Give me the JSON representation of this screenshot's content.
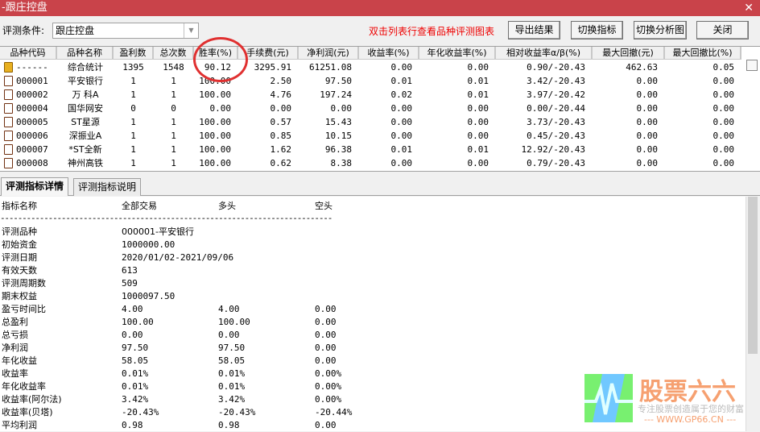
{
  "window": {
    "title": "-跟庄控盘",
    "close": "✕"
  },
  "toolbar": {
    "condition_label": "评测条件:",
    "condition_value": "跟庄控盘",
    "hint": "双击列表行查看品种评测图表",
    "buttons": [
      "导出结果",
      "切换指标",
      "切换分析图",
      "关闭"
    ]
  },
  "table": {
    "headers": [
      "品种代码",
      "品种名称",
      "盈利数",
      "总次数",
      "胜率(%)",
      "手续费(元)",
      "净利润(元)",
      "收益率(%)",
      "年化收益率(%)",
      "相对收益率α/β(%)",
      "最大回撤(元)",
      "最大回撤比(%)"
    ],
    "rows": [
      [
        "------",
        "综合统计",
        "1395",
        "1548",
        "90.12",
        "3295.91",
        "61251.08",
        "0.00",
        "0.00",
        "0.90/-20.43",
        "462.63",
        "0.05"
      ],
      [
        "000001",
        "平安银行",
        "1",
        "1",
        "100.00",
        "2.50",
        "97.50",
        "0.01",
        "0.01",
        "3.42/-20.43",
        "0.00",
        "0.00"
      ],
      [
        "000002",
        "万 科A",
        "1",
        "1",
        "100.00",
        "4.76",
        "197.24",
        "0.02",
        "0.01",
        "3.97/-20.42",
        "0.00",
        "0.00"
      ],
      [
        "000004",
        "国华网安",
        "0",
        "0",
        "0.00",
        "0.00",
        "0.00",
        "0.00",
        "0.00",
        "0.00/-20.44",
        "0.00",
        "0.00"
      ],
      [
        "000005",
        "ST星源",
        "1",
        "1",
        "100.00",
        "0.57",
        "15.43",
        "0.00",
        "0.00",
        "3.73/-20.43",
        "0.00",
        "0.00"
      ],
      [
        "000006",
        "深振业A",
        "1",
        "1",
        "100.00",
        "0.85",
        "10.15",
        "0.00",
        "0.00",
        "0.45/-20.43",
        "0.00",
        "0.00"
      ],
      [
        "000007",
        "*ST全新",
        "1",
        "1",
        "100.00",
        "1.62",
        "96.38",
        "0.01",
        "0.01",
        "12.92/-20.43",
        "0.00",
        "0.00"
      ],
      [
        "000008",
        "神州高铁",
        "1",
        "1",
        "100.00",
        "0.62",
        "8.38",
        "0.00",
        "0.00",
        "0.79/-20.43",
        "0.00",
        "0.00"
      ]
    ]
  },
  "tabs": [
    {
      "label": "评测指标详情",
      "active": true
    },
    {
      "label": "评测指标说明",
      "active": false
    }
  ],
  "detail": {
    "headers": [
      "指标名称",
      "全部交易",
      "多头",
      "空头"
    ],
    "separator": "----------------------------------------------------------------------------",
    "rows": [
      [
        "评测品种",
        "000001-平安银行",
        "",
        ""
      ],
      [
        "初始资金",
        "1000000.00",
        "",
        ""
      ],
      [
        "评测日期",
        "2020/01/02-2021/09/06",
        "",
        ""
      ],
      [
        "有效天数",
        "613",
        "",
        ""
      ],
      [
        "评测周期数",
        "509",
        "",
        ""
      ],
      [
        "期末权益",
        "1000097.50",
        "",
        ""
      ],
      [
        "盈亏时间比",
        "4.00",
        "4.00",
        "0.00"
      ],
      [
        "总盈利",
        "100.00",
        "100.00",
        "0.00"
      ],
      [
        "总亏损",
        "0.00",
        "0.00",
        "0.00"
      ],
      [
        "净利润",
        "97.50",
        "97.50",
        "0.00"
      ],
      [
        "年化收益",
        "58.05",
        "58.05",
        "0.00"
      ],
      [
        "收益率",
        "0.01%",
        "0.01%",
        "0.00%"
      ],
      [
        "年化收益率",
        "0.01%",
        "0.01%",
        "0.00%"
      ],
      [
        "收益率(阿尔法)",
        "3.42%",
        "3.42%",
        "0.00%"
      ],
      [
        "收益率(贝塔)",
        "-20.43%",
        "-20.43%",
        "-20.44%"
      ],
      [
        "平均利润",
        "0.98",
        "0.98",
        "0.00"
      ]
    ]
  },
  "watermark": {
    "brand": "股票六六",
    "slogan": "专注股票创造属于您的财富",
    "url": "--- WWW.GP66.CN ---"
  },
  "colors": {
    "titlebar": "#c9434a",
    "hint": "#ee0000",
    "annotation_circle": "#e03030"
  }
}
